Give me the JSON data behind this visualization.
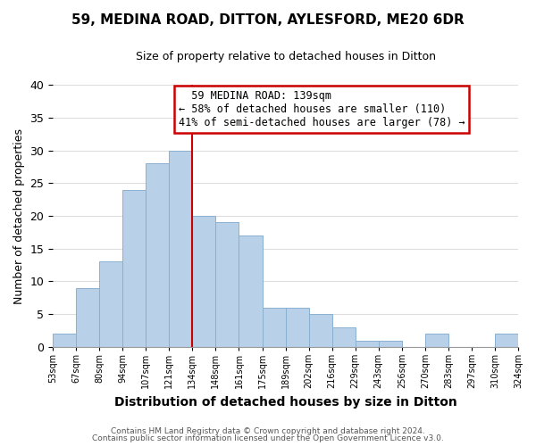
{
  "title": "59, MEDINA ROAD, DITTON, AYLESFORD, ME20 6DR",
  "subtitle": "Size of property relative to detached houses in Ditton",
  "xlabel": "Distribution of detached houses by size in Ditton",
  "ylabel": "Number of detached properties",
  "bin_labels": [
    "53sqm",
    "67sqm",
    "80sqm",
    "94sqm",
    "107sqm",
    "121sqm",
    "134sqm",
    "148sqm",
    "161sqm",
    "175sqm",
    "189sqm",
    "202sqm",
    "216sqm",
    "229sqm",
    "243sqm",
    "256sqm",
    "270sqm",
    "283sqm",
    "297sqm",
    "310sqm",
    "324sqm"
  ],
  "bar_values": [
    2,
    9,
    13,
    24,
    28,
    30,
    20,
    19,
    17,
    6,
    6,
    5,
    3,
    1,
    1,
    0,
    2,
    0,
    0,
    2
  ],
  "bar_color": "#b8d0e8",
  "bar_edge_color": "#8ab0d0",
  "vline_x_index": 6,
  "vline_color": "#cc0000",
  "ylim": [
    0,
    40
  ],
  "yticks": [
    0,
    5,
    10,
    15,
    20,
    25,
    30,
    35,
    40
  ],
  "annotation_title": "59 MEDINA ROAD: 139sqm",
  "annotation_line1": "← 58% of detached houses are smaller (110)",
  "annotation_line2": "41% of semi-detached houses are larger (78) →",
  "annotation_box_facecolor": "#ffffff",
  "annotation_box_edgecolor": "#cc0000",
  "footer1": "Contains HM Land Registry data © Crown copyright and database right 2024.",
  "footer2": "Contains public sector information licensed under the Open Government Licence v3.0.",
  "bg_color": "#ffffff",
  "plot_bg_color": "#ffffff",
  "grid_color": "#dddddd",
  "title_fontsize": 11,
  "subtitle_fontsize": 9,
  "xlabel_fontsize": 10,
  "ylabel_fontsize": 9
}
